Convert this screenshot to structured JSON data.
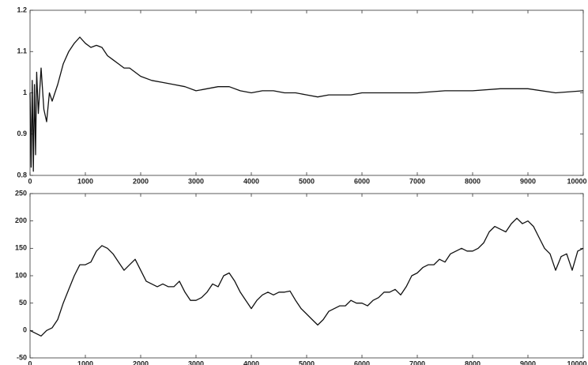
{
  "chart_data": [
    {
      "type": "line",
      "x": [
        0,
        20,
        40,
        60,
        80,
        100,
        120,
        150,
        200,
        250,
        300,
        350,
        400,
        500,
        600,
        700,
        800,
        900,
        1000,
        1100,
        1200,
        1300,
        1400,
        1500,
        1600,
        1700,
        1800,
        1900,
        2000,
        2200,
        2400,
        2600,
        2800,
        3000,
        3200,
        3400,
        3600,
        3800,
        4000,
        4200,
        4400,
        4600,
        4800,
        5000,
        5200,
        5400,
        5600,
        5800,
        6000,
        6500,
        7000,
        7500,
        8000,
        8500,
        9000,
        9500,
        10000
      ],
      "series": [
        {
          "color": "#111111",
          "values": [
            1.0,
            0.82,
            1.03,
            0.81,
            1.02,
            0.85,
            1.05,
            0.95,
            1.06,
            0.96,
            0.93,
            1.0,
            0.98,
            1.02,
            1.07,
            1.1,
            1.12,
            1.135,
            1.12,
            1.11,
            1.115,
            1.11,
            1.09,
            1.08,
            1.07,
            1.06,
            1.06,
            1.05,
            1.04,
            1.03,
            1.025,
            1.02,
            1.015,
            1.005,
            1.01,
            1.015,
            1.015,
            1.005,
            1.0,
            1.005,
            1.005,
            1.0,
            1.0,
            0.995,
            0.99,
            0.995,
            0.995,
            0.995,
            1.0,
            1.0,
            1.0,
            1.005,
            1.005,
            1.01,
            1.01,
            1.0,
            1.005
          ]
        }
      ],
      "xlim": [
        0,
        10000
      ],
      "xticks": [
        0,
        1000,
        2000,
        3000,
        4000,
        5000,
        6000,
        7000,
        8000,
        9000,
        10000
      ],
      "ylim": [
        0.8,
        1.2
      ],
      "yticks": [
        0.8,
        0.9,
        1,
        1.1,
        1.2
      ],
      "grid": false
    },
    {
      "type": "line",
      "x": [
        0,
        100,
        200,
        300,
        400,
        500,
        600,
        700,
        800,
        900,
        1000,
        1100,
        1200,
        1300,
        1400,
        1500,
        1600,
        1700,
        1800,
        1900,
        2000,
        2100,
        2200,
        2300,
        2400,
        2500,
        2600,
        2700,
        2800,
        2900,
        3000,
        3100,
        3200,
        3300,
        3400,
        3500,
        3600,
        3700,
        3800,
        3900,
        4000,
        4100,
        4200,
        4300,
        4400,
        4500,
        4600,
        4700,
        4800,
        4900,
        5000,
        5100,
        5200,
        5300,
        5400,
        5500,
        5600,
        5700,
        5800,
        5900,
        6000,
        6100,
        6200,
        6300,
        6400,
        6500,
        6600,
        6700,
        6800,
        6900,
        7000,
        7100,
        7200,
        7300,
        7400,
        7500,
        7600,
        7700,
        7800,
        7900,
        8000,
        8100,
        8200,
        8300,
        8400,
        8500,
        8600,
        8700,
        8800,
        8900,
        9000,
        9100,
        9200,
        9300,
        9400,
        9500,
        9600,
        9700,
        9800,
        9900,
        10000
      ],
      "series": [
        {
          "color": "#111111",
          "values": [
            0,
            -5,
            -10,
            0,
            5,
            20,
            50,
            75,
            100,
            120,
            120,
            125,
            145,
            155,
            150,
            140,
            125,
            110,
            120,
            130,
            110,
            90,
            85,
            80,
            85,
            80,
            80,
            90,
            70,
            55,
            55,
            60,
            70,
            85,
            80,
            100,
            105,
            90,
            70,
            55,
            40,
            55,
            65,
            70,
            65,
            70,
            70,
            72,
            55,
            40,
            30,
            20,
            10,
            20,
            35,
            40,
            45,
            45,
            55,
            50,
            50,
            45,
            55,
            60,
            70,
            70,
            75,
            65,
            80,
            100,
            105,
            115,
            120,
            120,
            130,
            125,
            140,
            145,
            150,
            145,
            145,
            150,
            160,
            180,
            190,
            185,
            180,
            195,
            205,
            195,
            200,
            190,
            170,
            150,
            140,
            110,
            135,
            140,
            110,
            145,
            150
          ]
        }
      ],
      "xlim": [
        0,
        10000
      ],
      "xticks": [
        0,
        1000,
        2000,
        3000,
        4000,
        5000,
        6000,
        7000,
        8000,
        9000,
        10000
      ],
      "ylim": [
        -50,
        250
      ],
      "yticks": [
        -50,
        0,
        50,
        100,
        150,
        200,
        250
      ],
      "grid": false
    }
  ]
}
